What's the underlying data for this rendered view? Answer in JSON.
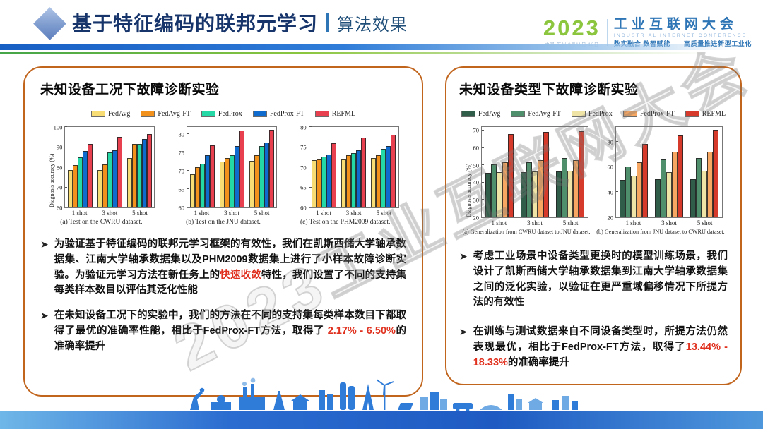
{
  "header": {
    "title": "基于特征编码的联邦元学习",
    "divider": "｜",
    "subtitle": "算法效果"
  },
  "logo": {
    "year": "2023",
    "venue": "中国·苏州 3月11日-13日",
    "name": "工业互联网大会",
    "name_en": "INDUSTRIAL INTERNET CONFERENCE",
    "slogan": "数实融合 数智赋能——高质量推进新型工业化"
  },
  "watermark": "2023工业互联网大会",
  "left_panel": {
    "title": "未知设备工况下故障诊断实验",
    "legend": [
      {
        "label": "FedAvg",
        "color": "#F8DC74"
      },
      {
        "label": "FedAvg-FT",
        "color": "#F2921D"
      },
      {
        "label": "FedProx",
        "color": "#25D9A6"
      },
      {
        "label": "FedProx-FT",
        "color": "#0F6BCE"
      },
      {
        "label": "REFML",
        "color": "#E8404E"
      }
    ],
    "bullets": [
      {
        "pre": "为验证基于特征编码的联邦元学习框架的有效性，我们在凯斯西储大学轴承数据集、江南大学轴承数据集以及PHM2009数据集上进行了小样本故障诊断实验。为验证元学习方法在新任务上的",
        "highlight": "快速收敛",
        "post": "特性，我们设置了不同的支持集每类样本数目以评估其泛化性能"
      },
      {
        "pre": "在未知设备工况下的实验中，我们的方法在不同的支持集每类样本数目下都取得了最优的准确率性能，相比于FedProx-FT方法，取得了 ",
        "highlight": "2.17% - 6.50%",
        "post": "的准确率提升"
      }
    ]
  },
  "right_panel": {
    "title": "未知设备类型下故障诊断实验",
    "legend": [
      {
        "label": "FedAvg",
        "color": "#2F5D49"
      },
      {
        "label": "FedAvg-FT",
        "color": "#4F8F6B"
      },
      {
        "label": "FedProx",
        "color": "#EFE3A6"
      },
      {
        "label": "FedProx-FT",
        "color": "#F7A761"
      },
      {
        "label": "REFML",
        "color": "#D63A2B"
      }
    ],
    "bullets": [
      {
        "pre": "考虑工业场景中设备类型更换时的模型训练场景，我们设计了凯斯西储大学轴承数据集到江南大学轴承数据集之间的泛化实验，以验证在更严重域偏移情况下所提方法的有效性",
        "highlight": "",
        "post": ""
      },
      {
        "pre": "在训练与测试数据来自不同设备类型时，所提方法仍然表现最优，相比于FedProx-FT方法，取得了",
        "highlight": "13.44% - 18.33%",
        "post": "的准确率提升"
      }
    ]
  },
  "chart_data": [
    {
      "type": "bar",
      "panel": "left",
      "caption": "(a) Test on the CWRU dataset.",
      "ylabel": "Diagnosis accuracy (%)",
      "ylim": [
        60,
        100
      ],
      "yticks": [
        60,
        70,
        80,
        90,
        100
      ],
      "categories": [
        "1 shot",
        "3 shot",
        "5 shot"
      ],
      "series": [
        {
          "name": "FedAvg",
          "values": [
            78.5,
            78.5,
            84.5
          ]
        },
        {
          "name": "FedAvg-FT",
          "values": [
            81.0,
            81.5,
            91.5
          ]
        },
        {
          "name": "FedProx",
          "values": [
            85.0,
            87.5,
            91.5
          ]
        },
        {
          "name": "FedProx-FT",
          "values": [
            88.0,
            88.5,
            94.0
          ]
        },
        {
          "name": "REFML",
          "values": [
            91.5,
            95.0,
            96.5
          ]
        }
      ]
    },
    {
      "type": "bar",
      "panel": "left",
      "caption": "(b) Test on the JNU dataset.",
      "ylabel": "",
      "ylim": [
        60,
        82
      ],
      "yticks": [
        60,
        65,
        70,
        75,
        80
      ],
      "categories": [
        "1 shot",
        "3 shot",
        "5 shot"
      ],
      "series": [
        {
          "name": "FedAvg",
          "values": [
            69.0,
            72.5,
            72.8
          ]
        },
        {
          "name": "FedAvg-FT",
          "values": [
            71.0,
            73.6,
            74.2
          ]
        },
        {
          "name": "FedProx",
          "values": [
            72.0,
            74.2,
            76.7
          ]
        },
        {
          "name": "FedProx-FT",
          "values": [
            74.2,
            76.7,
            77.7
          ]
        },
        {
          "name": "REFML",
          "values": [
            77.0,
            81.0,
            81.2
          ]
        }
      ]
    },
    {
      "type": "bar",
      "panel": "left",
      "caption": "(c) Test on the PHM2009 dataset.",
      "ylabel": "",
      "ylim": [
        60,
        80
      ],
      "yticks": [
        60,
        65,
        70,
        75,
        80
      ],
      "categories": [
        "1 shot",
        "3 shot",
        "5 shot"
      ],
      "series": [
        {
          "name": "FedAvg",
          "values": [
            71.7,
            72.0,
            72.3
          ]
        },
        {
          "name": "FedAvg-FT",
          "values": [
            72.0,
            73.0,
            73.0
          ]
        },
        {
          "name": "FedProx",
          "values": [
            72.6,
            73.5,
            74.5
          ]
        },
        {
          "name": "FedProx-FT",
          "values": [
            73.2,
            74.2,
            75.3
          ]
        },
        {
          "name": "REFML",
          "values": [
            76.0,
            77.3,
            78.0
          ]
        }
      ]
    },
    {
      "type": "bar",
      "panel": "right",
      "caption": "(a) Generalization from CWRU dataset to JNU dataset.",
      "ylabel": "Diagnosis accuracy (%)",
      "ylim": [
        20,
        72
      ],
      "yticks": [
        20,
        30,
        40,
        50,
        60,
        70
      ],
      "categories": [
        "1 shot",
        "3 shot",
        "5 shot"
      ],
      "series": [
        {
          "name": "FedAvg",
          "values": [
            45.5,
            46.0,
            46.5
          ]
        },
        {
          "name": "FedAvg-FT",
          "values": [
            50.5,
            51.5,
            54.0
          ]
        },
        {
          "name": "FedProx",
          "values": [
            46.0,
            46.5,
            47.0
          ]
        },
        {
          "name": "FedProx-FT",
          "values": [
            51.5,
            53.0,
            53.0
          ]
        },
        {
          "name": "REFML",
          "values": [
            68.0,
            69.0,
            69.5
          ]
        }
      ]
    },
    {
      "type": "bar",
      "panel": "right",
      "caption": "(b) Generalization from JNU dataset to CWRU dataset.",
      "ylabel": "",
      "ylim": [
        20,
        92
      ],
      "yticks": [
        20,
        40,
        60,
        80
      ],
      "categories": [
        "1 shot",
        "3 shot",
        "5 shot"
      ],
      "series": [
        {
          "name": "FedAvg",
          "values": [
            50.0,
            50.5,
            50.5
          ]
        },
        {
          "name": "FedAvg-FT",
          "values": [
            60.5,
            66.0,
            67.5
          ]
        },
        {
          "name": "FedProx",
          "values": [
            53.0,
            56.0,
            57.0
          ]
        },
        {
          "name": "FedProx-FT",
          "values": [
            64.0,
            72.5,
            72.5
          ]
        },
        {
          "name": "REFML",
          "values": [
            78.5,
            85.5,
            90.0
          ]
        }
      ]
    }
  ]
}
